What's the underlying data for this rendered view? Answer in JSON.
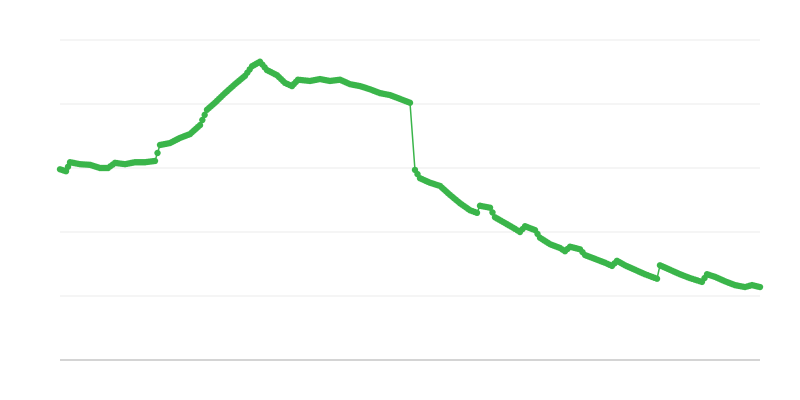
{
  "chart_data": {
    "type": "line",
    "title": "",
    "xlabel": "",
    "ylabel": "",
    "xlim": [
      0,
      100
    ],
    "ylim": [
      0,
      5
    ],
    "grid": true,
    "legend": "none",
    "colors": {
      "series": "#3ab54a",
      "grid": "#ebebeb",
      "axis": "#aaaaaa"
    },
    "series": [
      {
        "x": [
          0,
          0.86,
          1.43,
          2.86,
          4.29,
          5.71,
          6.86,
          7.86,
          9.29,
          10.71,
          12.14,
          13.57,
          14.29,
          15.71,
          17.14,
          18.57,
          20,
          21,
          22.14,
          23.57,
          25,
          26.43,
          27.43,
          28.57,
          29.57,
          31,
          32.14,
          33.14,
          34,
          35.71,
          37.14,
          38.57,
          40,
          41.43,
          42.86,
          44.29,
          45.71,
          47.14,
          48.57,
          50,
          50.71,
          51.43,
          52.86,
          54.29,
          55.71,
          57.14,
          58.57,
          59.57,
          60,
          61.43,
          62.14,
          63.57,
          65,
          65.71,
          66.43,
          67.86,
          68.57,
          70,
          71.43,
          72.14,
          72.86,
          74.29,
          75,
          76.43,
          77.86,
          78.86,
          79.57,
          80.71,
          82.14,
          83.57,
          85.29,
          85.71,
          87.14,
          88.57,
          90,
          91.71,
          92.43,
          93.57,
          95,
          96.43,
          97.86,
          98.86,
          100
        ],
        "y": [
          2.98,
          2.95,
          3.09,
          3.06,
          3.05,
          3.0,
          3.0,
          3.08,
          3.06,
          3.09,
          3.09,
          3.11,
          3.36,
          3.39,
          3.47,
          3.53,
          3.67,
          3.91,
          4.02,
          4.17,
          4.31,
          4.44,
          4.59,
          4.66,
          4.53,
          4.45,
          4.33,
          4.28,
          4.38,
          4.36,
          4.39,
          4.36,
          4.38,
          4.31,
          4.28,
          4.23,
          4.17,
          4.14,
          4.08,
          4.02,
          2.97,
          2.84,
          2.77,
          2.72,
          2.58,
          2.45,
          2.34,
          2.3,
          2.41,
          2.38,
          2.23,
          2.14,
          2.05,
          2.0,
          2.09,
          2.03,
          1.91,
          1.81,
          1.75,
          1.7,
          1.77,
          1.73,
          1.64,
          1.58,
          1.52,
          1.47,
          1.55,
          1.48,
          1.41,
          1.34,
          1.27,
          1.48,
          1.41,
          1.34,
          1.28,
          1.22,
          1.34,
          1.3,
          1.23,
          1.17,
          1.14,
          1.17,
          1.14
        ]
      }
    ]
  }
}
